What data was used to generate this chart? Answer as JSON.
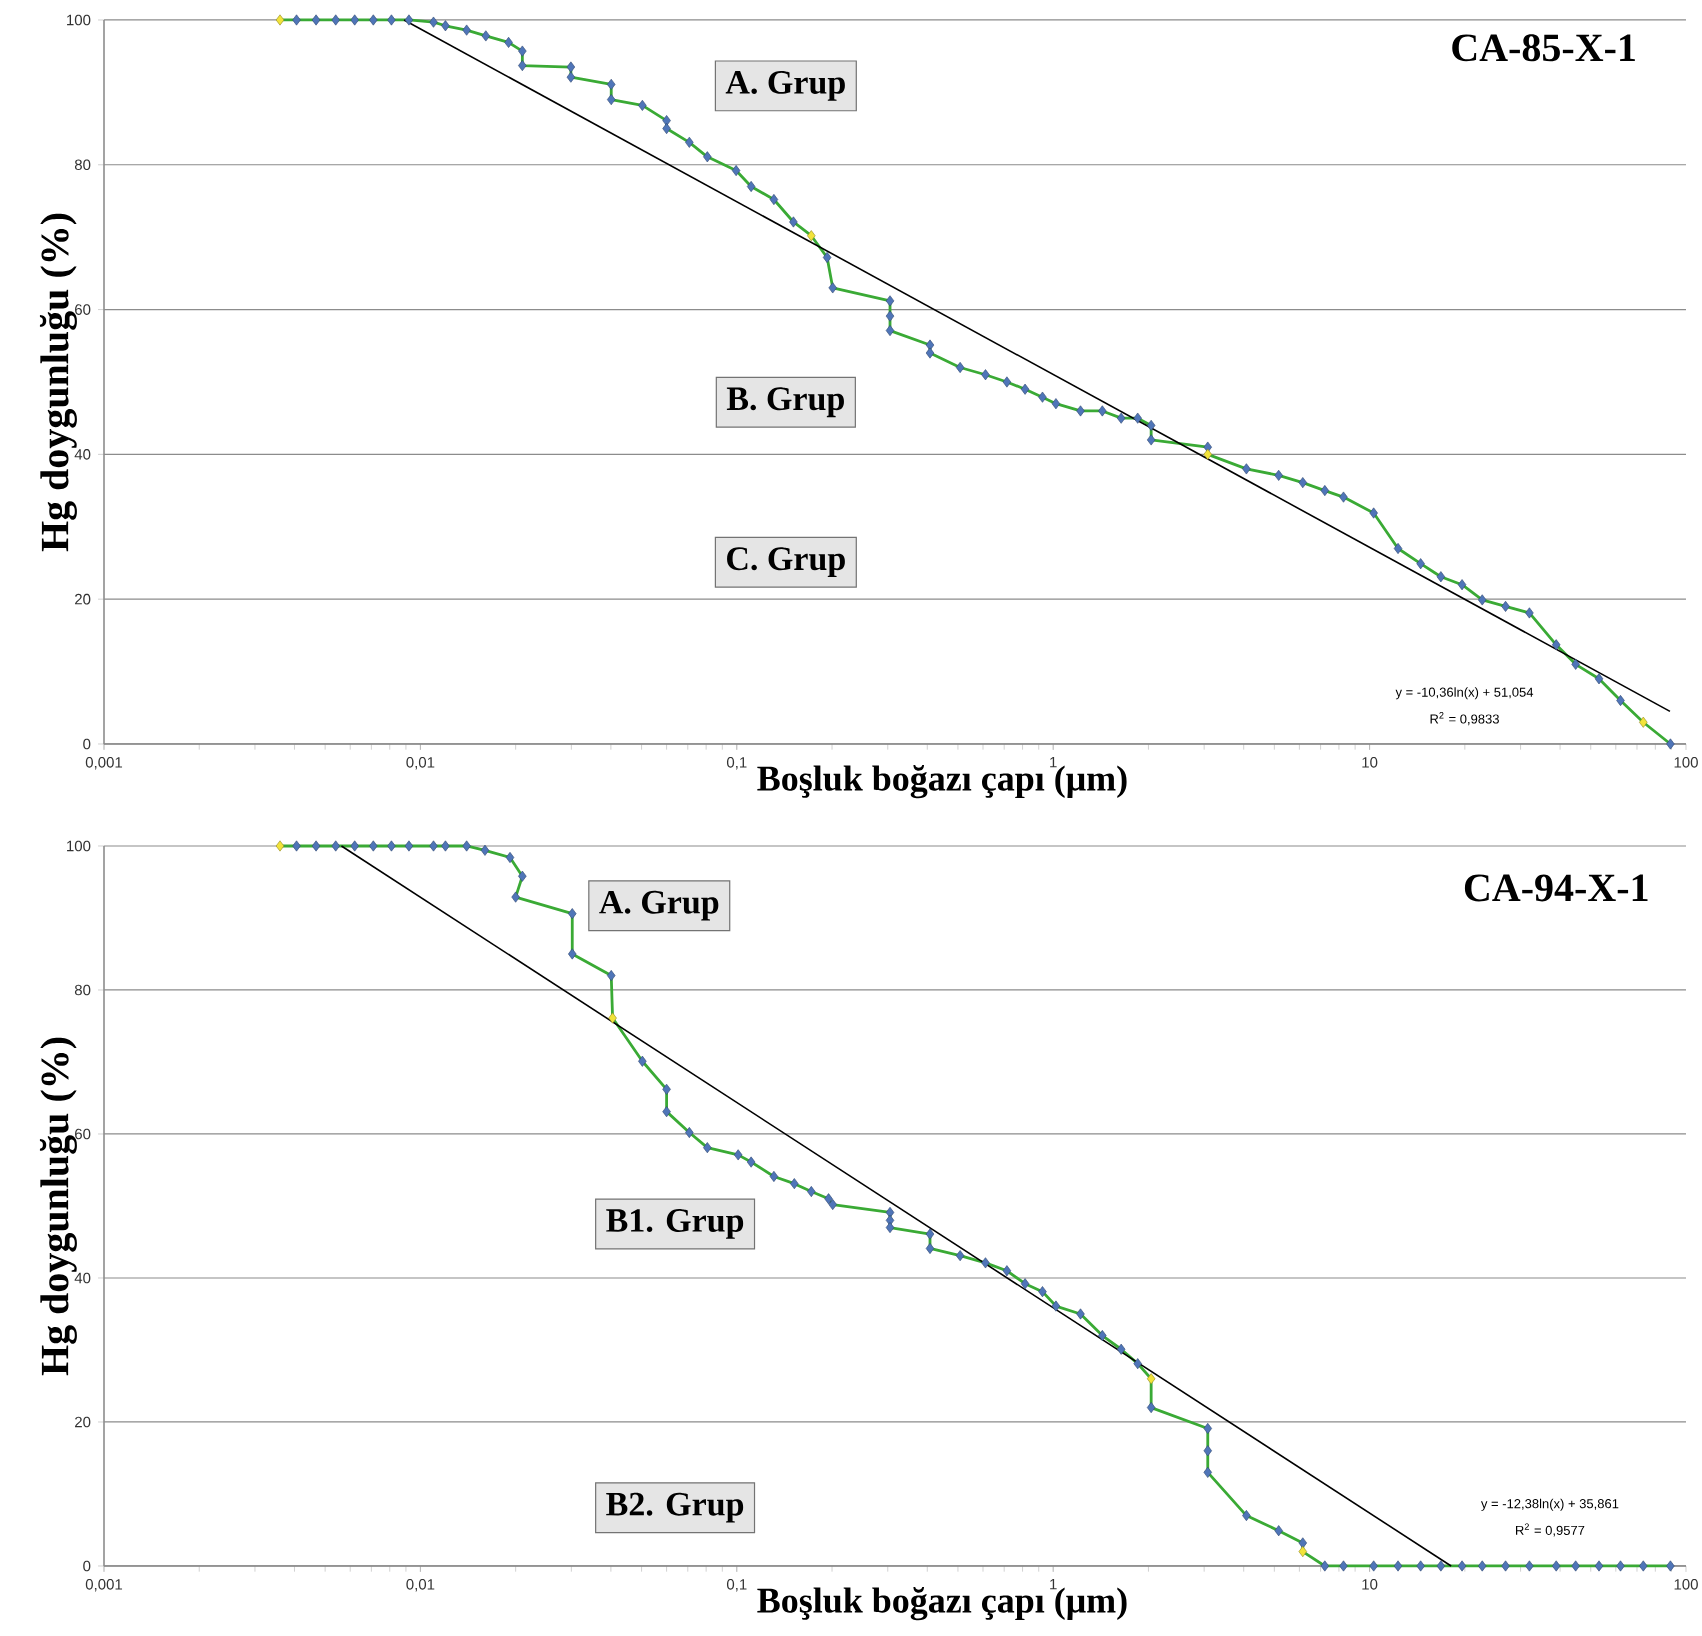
{
  "chart_data": [
    {
      "type": "line",
      "title": "CA-85-X-1",
      "xlabel": "Boşluk boğazı çapı (μm)",
      "ylabel": "Hg doygunluğu (%)",
      "log": "x",
      "grid": "y",
      "xlim": [
        0.001,
        100
      ],
      "ylim": [
        0,
        100
      ],
      "xticks": [
        {
          "value": 0.001,
          "label": "0,001"
        },
        {
          "value": 0.01,
          "label": "0,01"
        },
        {
          "value": 0.1,
          "label": "0,1"
        },
        1,
        10,
        100
      ],
      "yticks": [
        0,
        20,
        40,
        60,
        80,
        100
      ],
      "annotations": [
        "A. Grup",
        "B. Grup",
        "C. Grup",
        "y = -10,36ln(x) + 51,054",
        "R$^{2}$ = 0,9833"
      ],
      "series": [
        {
          "marker": "none",
          "color": "#3aaa35",
          "x": [
            0.0036,
            0.00406,
            0.00468,
            0.0054,
            0.0062,
            0.0071,
            0.0081,
            0.0092,
            0.011,
            0.012,
            0.014,
            0.0161,
            0.019,
            0.021,
            0.021,
            0.0299,
            0.0299,
            0.0401,
            0.0401,
            0.0503,
            0.06,
            0.06,
            0.0708,
            0.0807,
            0.0995,
            0.111,
            0.131,
            0.151,
            0.172,
            0.193,
            0.201,
            0.305,
            0.305,
            0.408,
            0.408,
            0.508,
            0.611,
            0.714,
            0.815,
            0.925,
            1.02,
            1.22,
            1.43,
            1.64,
            1.85,
            2.04,
            2.04,
            3.08,
            3.08,
            4.08,
            5.16,
            6.15,
            7.22,
            8.27,
            10.3,
            12.3,
            14.5,
            16.8,
            19.6,
            22.7,
            26.9,
            32.0,
            38.9,
            44.8,
            53.1,
            62.1,
            73.3,
            89.3
          ],
          "values": [
            100,
            100,
            100,
            100,
            100,
            100,
            100,
            100,
            99.7,
            99.2,
            98.6,
            97.8,
            96.9,
            95.7,
            93.7,
            93.5,
            92.1,
            91.1,
            89.0,
            88.2,
            86.1,
            85.0,
            83.1,
            81.1,
            79.2,
            77.0,
            75.2,
            72.1,
            70.2,
            67.2,
            63.0,
            61.2,
            57.1,
            55.1,
            54.0,
            52.0,
            51.0,
            50.0,
            49.0,
            47.9,
            47.0,
            46.0,
            46.0,
            45.0,
            45.0,
            44.0,
            42.0,
            41.0,
            40,
            38.0,
            37.1,
            36.1,
            35.0,
            34.1,
            31.9,
            27.0,
            24.9,
            23.1,
            22.0,
            19.9,
            19.0,
            18.1,
            13.7,
            11.0,
            9.0,
            6.0,
            3.0,
            0
          ]
        },
        {
          "type": "scatter",
          "marker": "diamond",
          "color": "#4f75b8",
          "x": [
            0.00406,
            0.00468,
            0.0054,
            0.0062,
            0.0071,
            0.0081,
            0.0092,
            0.011,
            0.012,
            0.014,
            0.0161,
            0.019,
            0.021,
            0.021,
            0.0299,
            0.0299,
            0.0401,
            0.0401,
            0.0503,
            0.06,
            0.06,
            0.0708,
            0.0807,
            0.0995,
            0.111,
            0.131,
            0.151,
            0.193,
            0.201,
            0.305,
            0.305,
            0.305,
            0.408,
            0.408,
            0.508,
            0.611,
            0.714,
            0.815,
            0.925,
            1.02,
            1.22,
            1.43,
            1.64,
            1.85,
            2.04,
            2.04,
            3.08,
            4.08,
            5.16,
            6.15,
            7.22,
            8.27,
            10.3,
            12.3,
            14.5,
            16.8,
            19.6,
            22.7,
            26.9,
            32.0,
            38.9,
            44.8,
            53.1,
            62.1,
            89.3
          ],
          "values": [
            100,
            100,
            100,
            100,
            100,
            100,
            100,
            99.7,
            99.2,
            98.6,
            97.8,
            96.9,
            95.7,
            93.7,
            93.5,
            92.1,
            91.1,
            89.0,
            88.2,
            86.1,
            85.0,
            83.1,
            81.1,
            79.2,
            77.0,
            75.2,
            72.1,
            67.2,
            63.0,
            61.2,
            59.1,
            57.1,
            55.1,
            54.0,
            52.0,
            51.0,
            50.0,
            49.0,
            47.9,
            47.0,
            46.0,
            46.0,
            45.0,
            45.0,
            44.0,
            42.0,
            41.0,
            38.0,
            37.1,
            36.1,
            35.0,
            34.1,
            31.9,
            27.0,
            24.9,
            23.1,
            22.0,
            19.9,
            19.0,
            18.1,
            13.7,
            11.0,
            9.0,
            6.0,
            0
          ]
        },
        {
          "type": "scatter",
          "marker": "diamond",
          "color": "#f2e33a",
          "x": [
            0.0036,
            0.172,
            3.08,
            73.3
          ],
          "values": [
            100,
            70.2,
            40,
            3.0
          ]
        },
        {
          "marker": "none",
          "color": "#000000",
          "x": [
            0.00888,
            89
          ],
          "values": [
            100,
            4.5
          ]
        }
      ]
    },
    {
      "type": "line",
      "title": "CA-94-X-1",
      "xlabel": "Boşluk boğazı çapı (μm)",
      "ylabel": "Hg doygunluğu (%)",
      "log": "x",
      "grid": "y",
      "xlim": [
        0.001,
        100
      ],
      "ylim": [
        0,
        100
      ],
      "xticks": [
        {
          "value": 0.001,
          "label": "0,001"
        },
        {
          "value": 0.01,
          "label": "0,01"
        },
        {
          "value": 0.1,
          "label": "0,1"
        },
        1,
        10,
        100
      ],
      "yticks": [
        0,
        20,
        40,
        60,
        80,
        100
      ],
      "annotations": [
        "A. Grup",
        "B1. Grup",
        "B2. Grup",
        "y = -12,38ln(x) + 35,861",
        "R$^{2}$ = 0,9577"
      ],
      "series": [
        {
          "marker": "none",
          "color": "#3aaa35",
          "x": [
            0.0036,
            0.00406,
            0.00468,
            0.0054,
            0.0062,
            0.0071,
            0.0081,
            0.0092,
            0.011,
            0.012,
            0.014,
            0.016,
            0.0192,
            0.021,
            0.02,
            0.0302,
            0.0302,
            0.0401,
            0.0405,
            0.0503,
            0.06,
            0.06,
            0.0708,
            0.0807,
            0.101,
            0.111,
            0.131,
            0.152,
            0.172,
            0.195,
            0.201,
            0.305,
            0.305,
            0.305,
            0.408,
            0.408,
            0.508,
            0.611,
            0.714,
            0.815,
            0.925,
            1.02,
            1.22,
            1.43,
            1.64,
            1.85,
            2.04,
            2.04,
            3.08,
            3.08,
            3.08,
            4.08,
            5.16,
            6.15,
            6.15,
            7.22,
            8.27,
            10.3,
            12.3,
            14.5,
            16.8,
            19.6,
            22.7,
            26.9,
            32.0,
            38.9,
            44.8,
            53.1,
            62.1,
            73.3,
            89.3
          ],
          "values": [
            100,
            100,
            100,
            100,
            100,
            100,
            100,
            100,
            100,
            100,
            100,
            99.4,
            98.4,
            95.8,
            92.9,
            90.6,
            85.0,
            82.0,
            76.1,
            70.1,
            66.2,
            63.1,
            60.2,
            58.1,
            57.1,
            56.1,
            54.1,
            53.1,
            52.0,
            51.0,
            50.2,
            49.1,
            48.0,
            47.0,
            46.1,
            44.1,
            43.1,
            42.1,
            41.0,
            39.2,
            38.1,
            36.1,
            35.0,
            32.0,
            30.1,
            28.1,
            26.0,
            22.0,
            19.1,
            16.0,
            13.0,
            7.0,
            4.9,
            3.2,
            2,
            0,
            0,
            0,
            0,
            0,
            0,
            0,
            0,
            0,
            0,
            0,
            0,
            0,
            0,
            0,
            0
          ]
        },
        {
          "type": "scatter",
          "marker": "diamond",
          "color": "#4f75b8",
          "x": [
            0.00406,
            0.00468,
            0.0054,
            0.0062,
            0.0071,
            0.0081,
            0.0092,
            0.011,
            0.012,
            0.014,
            0.016,
            0.0192,
            0.021,
            0.02,
            0.0302,
            0.0302,
            0.0401,
            0.0503,
            0.06,
            0.06,
            0.0708,
            0.0807,
            0.101,
            0.111,
            0.131,
            0.152,
            0.172,
            0.195,
            0.201,
            0.305,
            0.305,
            0.305,
            0.408,
            0.408,
            0.508,
            0.611,
            0.714,
            0.815,
            0.925,
            1.02,
            1.22,
            1.43,
            1.64,
            1.85,
            2.04,
            3.08,
            3.08,
            3.08,
            4.08,
            5.16,
            6.15,
            7.22,
            8.27,
            10.3,
            12.3,
            14.5,
            16.8,
            19.6,
            22.7,
            26.9,
            32.0,
            38.9,
            44.8,
            53.1,
            62.1,
            73.3,
            89.3
          ],
          "values": [
            100,
            100,
            100,
            100,
            100,
            100,
            100,
            100,
            100,
            100,
            99.4,
            98.4,
            95.8,
            92.9,
            90.6,
            85.0,
            82.0,
            70.1,
            66.2,
            63.1,
            60.2,
            58.1,
            57.1,
            56.1,
            54.1,
            53.1,
            52.0,
            51.0,
            50.2,
            49.1,
            48.0,
            47.0,
            46.1,
            44.1,
            43.1,
            42.1,
            41.0,
            39.2,
            38.1,
            36.1,
            35.0,
            32.0,
            30.1,
            28.1,
            22.0,
            19.1,
            16.0,
            13.0,
            7.0,
            4.9,
            3.2,
            0,
            0,
            0,
            0,
            0,
            0,
            0,
            0,
            0,
            0,
            0,
            0,
            0,
            0,
            0,
            0
          ]
        },
        {
          "type": "scatter",
          "marker": "diamond",
          "color": "#f2e33a",
          "x": [
            0.0036,
            0.0405,
            2.04,
            6.15
          ],
          "values": [
            100,
            76.1,
            26.0,
            2
          ]
        },
        {
          "marker": "none",
          "color": "#000000",
          "x": [
            0.00563,
            18.1
          ],
          "values": [
            100,
            0
          ]
        }
      ]
    }
  ]
}
